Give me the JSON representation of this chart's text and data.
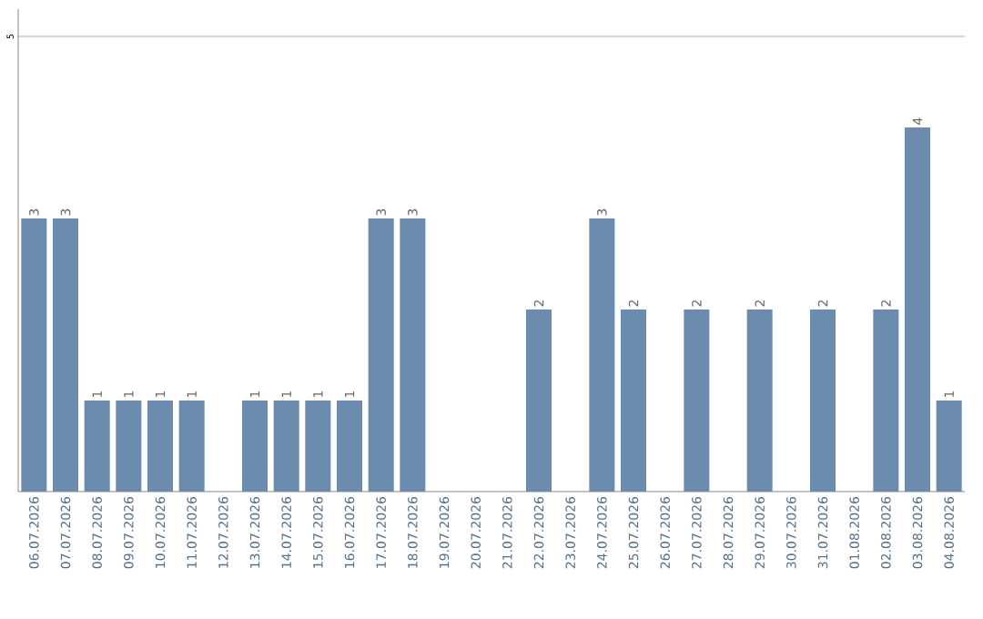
{
  "chart_data": {
    "type": "bar",
    "categories": [
      "06.07.2026",
      "07.07.2026",
      "08.07.2026",
      "09.07.2026",
      "10.07.2026",
      "11.07.2026",
      "12.07.2026",
      "13.07.2026",
      "14.07.2026",
      "15.07.2026",
      "16.07.2026",
      "17.07.2026",
      "18.07.2026",
      "19.07.2026",
      "20.07.2026",
      "21.07.2026",
      "22.07.2026",
      "23.07.2026",
      "24.07.2026",
      "25.07.2026",
      "26.07.2026",
      "27.07.2026",
      "28.07.2026",
      "29.07.2026",
      "30.07.2026",
      "31.07.2026",
      "01.08.2026",
      "02.08.2026",
      "03.08.2026",
      "04.08.2026"
    ],
    "values": [
      3,
      3,
      1,
      1,
      1,
      1,
      null,
      1,
      1,
      1,
      1,
      3,
      3,
      null,
      null,
      null,
      2,
      null,
      3,
      2,
      null,
      2,
      null,
      2,
      null,
      2,
      null,
      2,
      4,
      1
    ],
    "color": "#6b8cae",
    "ylim": [
      0,
      5.3
    ],
    "yticks": [
      5
    ],
    "grid": "y",
    "data_labels": true
  }
}
